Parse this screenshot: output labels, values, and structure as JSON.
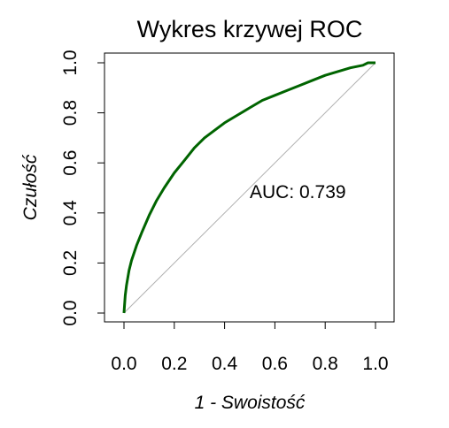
{
  "chart_data": {
    "type": "line",
    "title": "Wykres krzywej ROC",
    "xlabel": "1 - Swoistość",
    "ylabel": "Czułość",
    "xlim": [
      0,
      1
    ],
    "ylim": [
      0,
      1
    ],
    "x_ticks": [
      "0.0",
      "0.2",
      "0.4",
      "0.6",
      "0.8",
      "1.0"
    ],
    "y_ticks": [
      "0.0",
      "0.2",
      "0.4",
      "0.6",
      "0.8",
      "1.0"
    ],
    "grid": false,
    "legend": "none",
    "annotation": {
      "text": "AUC: 0.739",
      "x": 0.5,
      "y": 0.46
    },
    "reference_line": {
      "x": [
        0,
        1
      ],
      "y": [
        0,
        1
      ],
      "color": "#b0b0b0"
    },
    "series": [
      {
        "color": "#006400",
        "x": [
          0.0,
          0.002,
          0.005,
          0.01,
          0.02,
          0.03,
          0.05,
          0.07,
          0.1,
          0.13,
          0.16,
          0.2,
          0.24,
          0.28,
          0.32,
          0.36,
          0.4,
          0.45,
          0.5,
          0.55,
          0.6,
          0.65,
          0.7,
          0.75,
          0.8,
          0.85,
          0.9,
          0.95,
          0.97,
          1.0
        ],
        "y": [
          0.0,
          0.03,
          0.07,
          0.11,
          0.17,
          0.21,
          0.27,
          0.32,
          0.39,
          0.45,
          0.5,
          0.56,
          0.61,
          0.66,
          0.7,
          0.73,
          0.76,
          0.79,
          0.82,
          0.85,
          0.87,
          0.89,
          0.91,
          0.93,
          0.95,
          0.965,
          0.98,
          0.99,
          1.0,
          1.0
        ]
      }
    ]
  }
}
